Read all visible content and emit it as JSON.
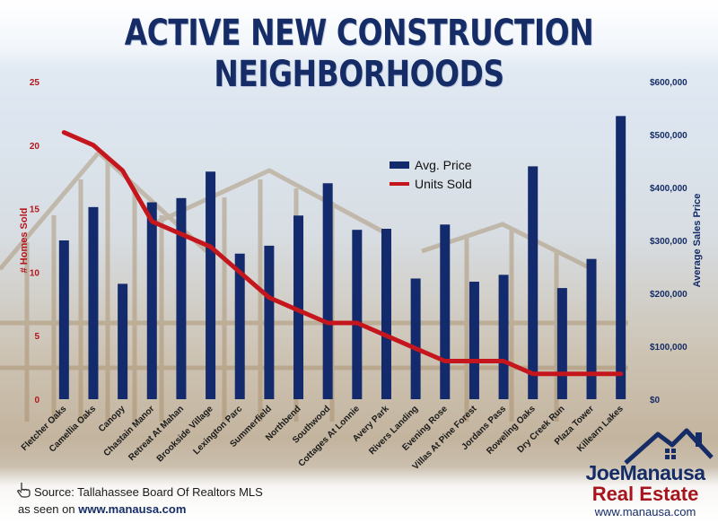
{
  "title": "ACTIVE NEW CONSTRUCTION NEIGHBORHOODS",
  "colors": {
    "bar": "#132a6c",
    "line": "#c4161c",
    "title": "#152c66"
  },
  "chart_data": {
    "type": "bar",
    "categories": [
      "Fletcher Oaks",
      "Camellia Oaks",
      "Canopy",
      "Chastain Manor",
      "Retreat At Mahan",
      "Brookside Village",
      "Lexington Parc",
      "Summerfield",
      "Northbend",
      "Southwood",
      "Cottages At Lonnie",
      "Avery Park",
      "Rivers Landing",
      "Evening Rose",
      "Villas At Pine Forest",
      "Jordans Pass",
      "Roweling Oaks",
      "Dry Creek Run",
      "Plaza Tower",
      "Killearn Lakes"
    ],
    "series": [
      {
        "name": "Avg. Price",
        "axis": "right",
        "type": "bar",
        "values": [
          300000,
          363000,
          218000,
          372000,
          380000,
          430000,
          275000,
          290000,
          347000,
          408000,
          320000,
          322000,
          228000,
          330000,
          222000,
          235000,
          440000,
          210000,
          265000,
          535000
        ]
      },
      {
        "name": "Units Sold",
        "axis": "left",
        "type": "line",
        "values": [
          21,
          20,
          18,
          14,
          13,
          12,
          10,
          8,
          7,
          6,
          6,
          5,
          4,
          3,
          3,
          3,
          2,
          2,
          2,
          2
        ]
      }
    ],
    "y_left": {
      "label": "# Homes Sold",
      "ticks": [
        "0",
        "5",
        "10",
        "15",
        "20",
        "25"
      ],
      "lim": [
        0,
        25
      ]
    },
    "y_right": {
      "label": "Average Sales Price",
      "ticks": [
        "$0",
        "$100,000",
        "$200,000",
        "$300,000",
        "$400,000",
        "$500,000",
        "$600,000"
      ],
      "lim": [
        0,
        600000
      ]
    },
    "legend": "top-center",
    "grid": false
  },
  "footer": {
    "source": "Source: Tallahassee Board Of Realtors MLS",
    "seen_prefix": "as seen on ",
    "seen_url": "www.manausa.com",
    "hand_icon": "hand-pointer-icon"
  },
  "logo": {
    "name": "JoeManausa",
    "sub": "Real Estate",
    "url": "www.manausa.com"
  }
}
